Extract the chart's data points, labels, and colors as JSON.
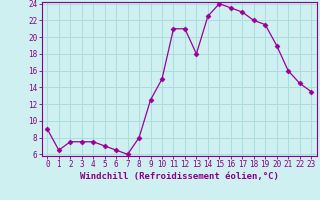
{
  "x": [
    0,
    1,
    2,
    3,
    4,
    5,
    6,
    7,
    8,
    9,
    10,
    11,
    12,
    13,
    14,
    15,
    16,
    17,
    18,
    19,
    20,
    21,
    22,
    23
  ],
  "y": [
    9.0,
    6.5,
    7.5,
    7.5,
    7.5,
    7.0,
    6.5,
    6.0,
    8.0,
    12.5,
    15.0,
    21.0,
    21.0,
    18.0,
    22.5,
    24.0,
    23.5,
    23.0,
    22.0,
    21.5,
    19.0,
    16.0,
    14.5,
    13.5
  ],
  "xlabel": "Windchill (Refroidissement éolien,°C)",
  "ylim": [
    6,
    24
  ],
  "xlim": [
    -0.5,
    23.5
  ],
  "yticks": [
    6,
    8,
    10,
    12,
    14,
    16,
    18,
    20,
    22,
    24
  ],
  "xticks": [
    0,
    1,
    2,
    3,
    4,
    5,
    6,
    7,
    8,
    9,
    10,
    11,
    12,
    13,
    14,
    15,
    16,
    17,
    18,
    19,
    20,
    21,
    22,
    23
  ],
  "line_color": "#990099",
  "marker": "D",
  "marker_size": 2.5,
  "bg_color": "#cff0f0",
  "grid_color": "#aadddd",
  "tick_color": "#880088",
  "label_color": "#880088",
  "font_size": 5.5,
  "xlabel_font_size": 6.5
}
